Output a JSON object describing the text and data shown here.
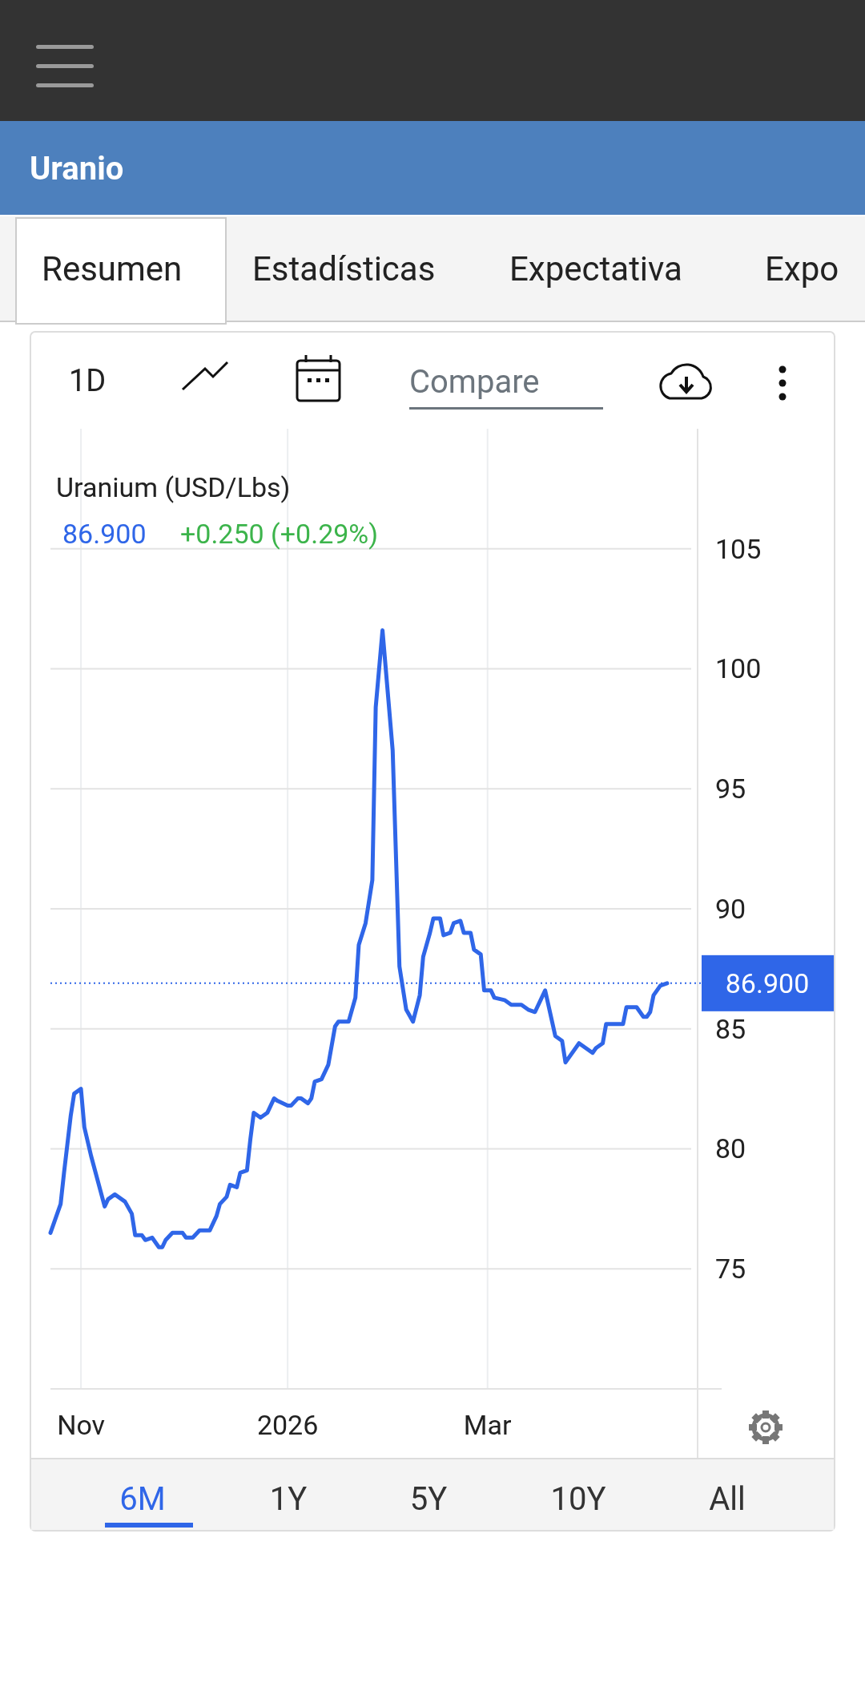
{
  "chart_data": {
    "type": "line",
    "title": "Uranium (USD/Lbs)",
    "annotations": [
      "86.900",
      "+0.250 (+0.29%)",
      "Uranio",
      "Resumen",
      "Estadísticas",
      "Expectativa",
      "Expo",
      "1D",
      "Compare",
      "6M",
      "1Y",
      "5Y",
      "10Y",
      "All"
    ],
    "x": [
      "2025-10-23",
      "2025-10-24",
      "2025-10-26",
      "2025-10-27",
      "2025-10-29",
      "2025-10-30",
      "2025-11-01",
      "2025-11-02",
      "2025-11-04",
      "2025-11-08",
      "2025-11-09",
      "2025-11-11",
      "2025-11-13",
      "2025-11-14",
      "2025-11-16",
      "2025-11-17",
      "2025-11-19",
      "2025-11-20",
      "2025-11-22",
      "2025-11-24",
      "2025-11-25",
      "2025-11-26",
      "2025-11-28",
      "2025-11-29",
      "2025-12-01",
      "2025-12-02",
      "2025-12-04",
      "2025-12-06",
      "2025-12-09",
      "2025-12-11",
      "2025-12-12",
      "2025-12-14",
      "2025-12-15",
      "2025-12-17",
      "2025-12-18",
      "2025-12-20",
      "2025-12-21",
      "2025-12-22",
      "2025-12-24",
      "2025-12-26",
      "2025-12-28",
      "2025-12-29",
      "2026-01-01",
      "2026-01-02",
      "2026-01-04",
      "2026-01-05",
      "2026-01-07",
      "2026-01-08",
      "2026-01-09",
      "2026-01-11",
      "2026-01-13",
      "2026-01-15",
      "2026-01-16",
      "2026-01-19",
      "2026-01-21",
      "2026-01-22",
      "2026-01-24",
      "2026-01-26",
      "2026-01-27",
      "2026-01-29",
      "2026-02-01",
      "2026-02-02",
      "2026-02-03",
      "2026-02-05",
      "2026-02-07",
      "2026-02-09",
      "2026-02-10",
      "2026-02-12",
      "2026-02-13",
      "2026-02-15",
      "2026-02-16",
      "2026-02-18",
      "2026-02-19",
      "2026-02-21",
      "2026-02-22",
      "2026-02-24",
      "2026-02-25",
      "2026-02-27",
      "2026-02-28",
      "2026-03-02",
      "2026-03-03",
      "2026-03-06",
      "2026-03-08",
      "2026-03-11",
      "2026-03-13",
      "2026-03-15",
      "2026-03-18",
      "2026-03-21",
      "2026-03-23",
      "2026-03-24",
      "2026-03-28",
      "2026-03-29",
      "2026-04-01",
      "2026-04-02",
      "2026-04-04",
      "2026-04-05",
      "2026-04-10",
      "2026-04-11",
      "2026-04-14",
      "2026-04-16",
      "2026-04-17",
      "2026-04-18",
      "2026-04-19",
      "2026-04-21",
      "2026-04-23"
    ],
    "series": [
      {
        "color": "#2f66e8",
        "values": [
          76.5,
          76.9,
          77.7,
          79.0,
          81.4,
          82.3,
          82.5,
          80.9,
          79.7,
          77.6,
          77.9,
          78.1,
          77.9,
          77.8,
          77.3,
          76.4,
          76.4,
          76.2,
          76.3,
          75.9,
          75.9,
          76.2,
          76.5,
          76.5,
          76.5,
          76.3,
          76.3,
          76.6,
          76.6,
          77.2,
          77.7,
          78.0,
          78.5,
          78.4,
          79.0,
          79.1,
          80.4,
          81.5,
          81.3,
          81.5,
          82.1,
          82.0,
          81.8,
          81.8,
          82.1,
          82.1,
          81.9,
          82.1,
          82.8,
          82.9,
          83.5,
          85.1,
          85.3,
          85.3,
          86.3,
          88.5,
          89.4,
          91.2,
          98.4,
          101.6,
          96.6,
          92.1,
          87.6,
          85.8,
          85.3,
          86.4,
          88.0,
          89.0,
          89.6,
          89.6,
          88.9,
          89.0,
          89.4,
          89.5,
          89.0,
          89.0,
          88.3,
          88.1,
          86.6,
          86.6,
          86.3,
          86.2,
          86.0,
          86.0,
          85.8,
          85.7,
          86.6,
          84.7,
          84.5,
          83.6,
          84.4,
          84.3,
          84.0,
          84.2,
          84.4,
          85.2,
          85.2,
          85.9,
          85.9,
          85.5,
          85.5,
          85.7,
          86.4,
          86.8,
          86.9
        ]
      }
    ],
    "xlim": [
      "2025-10-23",
      "2026-05-02"
    ],
    "xticks": [
      {
        "value": "2025-11-01",
        "label": "Nov"
      },
      {
        "value": "2026-01-01",
        "label": "2026"
      },
      {
        "value": "2026-03-01",
        "label": "Mar"
      }
    ],
    "ylim": [
      70,
      110
    ],
    "yticks": [
      75,
      80,
      85,
      90,
      95,
      100,
      105
    ],
    "grid": true,
    "ref_lines": [
      {
        "axis": "y",
        "value": 86.9,
        "label": "86.900",
        "color": "#2f66e8",
        "line_style": "dotted"
      }
    ]
  }
}
